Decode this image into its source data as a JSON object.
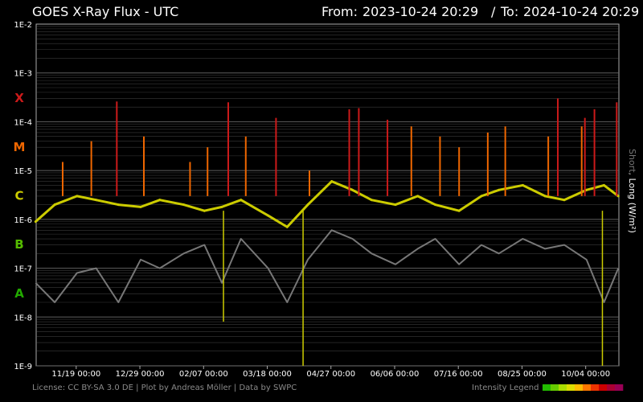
{
  "header": {
    "title": "GOES X-Ray Flux - UTC",
    "range_from_label": "From:",
    "range_from": "2023-10-24 20:29",
    "range_sep": "/",
    "range_to_label": "To:",
    "range_to": "2024-10-24 20:29"
  },
  "footer": {
    "credits": "License: CC BY-SA 3.0 DE | Plot by Andreas Möller | Data by SWPC",
    "legend_label": "Intensity Legend"
  },
  "side_label": {
    "short": "Short",
    "sep": ", ",
    "long": "Long (W/m²)"
  },
  "colors": {
    "background": "#000000",
    "short_series": "#777777",
    "gridline": "#6a6a6a",
    "legend_ramp": [
      "#22bb00",
      "#66cc00",
      "#aadd00",
      "#dddd00",
      "#ffbb00",
      "#ff7700",
      "#ee3300",
      "#cc0000",
      "#aa0033",
      "#990055"
    ]
  },
  "chart_data": {
    "type": "line",
    "title": "GOES X-Ray Flux - UTC",
    "ylabel": "Short, Long (W/m²)",
    "y_scale": "log",
    "ylim": [
      1e-09,
      0.01
    ],
    "grid": true,
    "y_ticks": [
      "1E-2",
      "1E-3",
      "1E-4",
      "1E-5",
      "1E-6",
      "1E-7",
      "1E-8",
      "1E-9"
    ],
    "flare_classes": [
      {
        "label": "X",
        "color": "#cc1a1a",
        "min_flux": 0.0001
      },
      {
        "label": "M",
        "color": "#ee6600",
        "min_flux": 1e-05
      },
      {
        "label": "C",
        "color": "#cccc00",
        "min_flux": 1e-06
      },
      {
        "label": "B",
        "color": "#55bb00",
        "min_flux": 1e-07
      },
      {
        "label": "A",
        "color": "#22aa00",
        "min_flux": 1e-08
      }
    ],
    "x_ticks": [
      "11/19 00:00",
      "12/29 00:00",
      "02/07 00:00",
      "03/18 00:00",
      "04/27 00:00",
      "06/06 00:00",
      "07/16 00:00",
      "08/25 00:00",
      "10/04 00:00"
    ],
    "series": [
      {
        "name": "Short",
        "color": "#777777",
        "x": [
          "2023-10-24",
          "2023-11-05",
          "2023-11-19",
          "2023-12-01",
          "2023-12-15",
          "2023-12-29",
          "2024-01-10",
          "2024-01-25",
          "2024-02-07",
          "2024-02-18",
          "2024-03-01",
          "2024-03-18",
          "2024-03-30",
          "2024-04-12",
          "2024-04-27",
          "2024-05-10",
          "2024-05-22",
          "2024-06-06",
          "2024-06-20",
          "2024-07-01",
          "2024-07-16",
          "2024-07-30",
          "2024-08-10",
          "2024-08-25",
          "2024-09-08",
          "2024-09-20",
          "2024-10-04",
          "2024-10-15",
          "2024-10-24"
        ],
        "values": [
          5e-08,
          2e-08,
          8e-08,
          1e-07,
          2e-08,
          1.5e-07,
          1e-07,
          2e-07,
          3e-07,
          5e-08,
          4e-07,
          1e-07,
          2e-08,
          1.5e-07,
          6e-07,
          4e-07,
          2e-07,
          1.2e-07,
          2.5e-07,
          4e-07,
          1.2e-07,
          3e-07,
          2e-07,
          4e-07,
          2.5e-07,
          3e-07,
          1.5e-07,
          2e-08,
          1e-07
        ]
      },
      {
        "name": "Long",
        "x": [
          "2023-10-24",
          "2023-11-05",
          "2023-11-19",
          "2023-12-01",
          "2023-12-15",
          "2023-12-29",
          "2024-01-10",
          "2024-01-25",
          "2024-02-07",
          "2024-02-18",
          "2024-03-01",
          "2024-03-18",
          "2024-03-30",
          "2024-04-12",
          "2024-04-27",
          "2024-05-10",
          "2024-05-22",
          "2024-06-06",
          "2024-06-20",
          "2024-07-01",
          "2024-07-16",
          "2024-07-30",
          "2024-08-10",
          "2024-08-25",
          "2024-09-08",
          "2024-09-20",
          "2024-10-04",
          "2024-10-15",
          "2024-10-24"
        ],
        "values": [
          9e-07,
          2e-06,
          3e-06,
          2.5e-06,
          2e-06,
          1.8e-06,
          2.5e-06,
          2e-06,
          1.5e-06,
          1.8e-06,
          2.5e-06,
          1.2e-06,
          7e-07,
          2e-06,
          6e-06,
          4e-06,
          2.5e-06,
          2e-06,
          3e-06,
          2e-06,
          1.5e-06,
          3e-06,
          4e-06,
          5e-06,
          3e-06,
          2.5e-06,
          4e-06,
          5e-06,
          3e-06
        ]
      }
    ],
    "peaks": [
      {
        "date": "2023-11-10",
        "flux": 1.5e-05
      },
      {
        "date": "2023-11-28",
        "flux": 4e-05
      },
      {
        "date": "2023-12-14",
        "flux": 0.00026
      },
      {
        "date": "2023-12-31",
        "flux": 5e-05
      },
      {
        "date": "2024-01-29",
        "flux": 1.5e-05
      },
      {
        "date": "2024-02-09",
        "flux": 3e-05
      },
      {
        "date": "2024-02-22",
        "flux": 0.00025
      },
      {
        "date": "2024-03-04",
        "flux": 5e-05
      },
      {
        "date": "2024-03-23",
        "flux": 0.00012
      },
      {
        "date": "2024-04-13",
        "flux": 1e-05
      },
      {
        "date": "2024-05-08",
        "flux": 0.00018
      },
      {
        "date": "2024-05-14",
        "flux": 0.00019
      },
      {
        "date": "2024-06-01",
        "flux": 0.00011
      },
      {
        "date": "2024-06-16",
        "flux": 8e-05
      },
      {
        "date": "2024-07-04",
        "flux": 5e-05
      },
      {
        "date": "2024-07-16",
        "flux": 3e-05
      },
      {
        "date": "2024-08-03",
        "flux": 6e-05
      },
      {
        "date": "2024-08-14",
        "flux": 8e-05
      },
      {
        "date": "2024-09-10",
        "flux": 5e-05
      },
      {
        "date": "2024-09-16",
        "flux": 0.0003
      },
      {
        "date": "2024-10-01",
        "flux": 8e-05
      },
      {
        "date": "2024-10-03",
        "flux": 0.00012
      },
      {
        "date": "2024-10-09",
        "flux": 0.00018
      },
      {
        "date": "2024-10-23",
        "flux": 0.00025
      }
    ],
    "dips": [
      {
        "date": "2024-02-19",
        "flux": 8e-09
      },
      {
        "date": "2024-04-09",
        "flux": 1e-09
      },
      {
        "date": "2024-10-14",
        "flux": 1e-09
      }
    ]
  }
}
